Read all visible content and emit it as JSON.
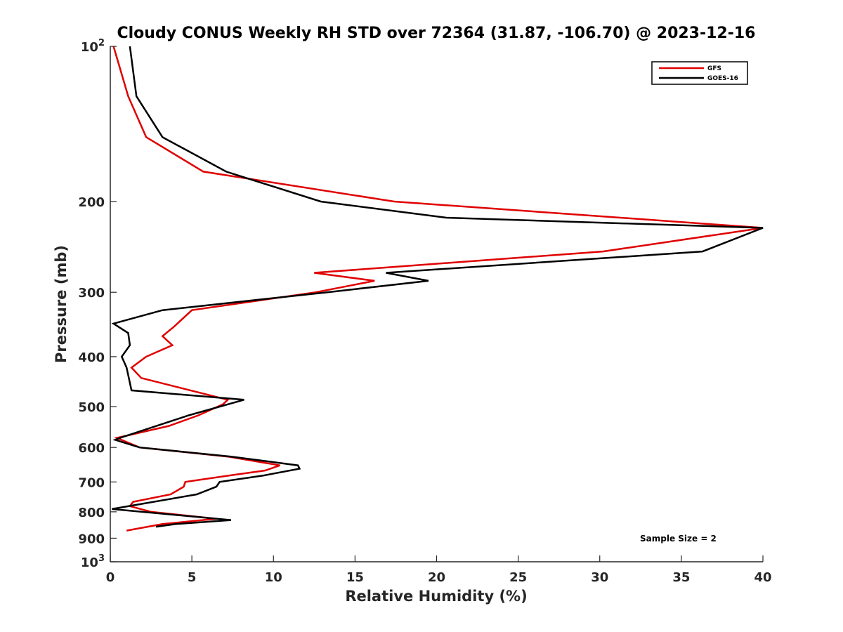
{
  "chart_data": {
    "type": "line",
    "title": "Cloudy CONUS Weekly RH STD over 72364 (31.87, -106.70) @ 2023-12-16",
    "xlabel": "Relative Humidity (%)",
    "ylabel": "Pressure (mb)",
    "xlim": [
      0,
      40
    ],
    "ylim": [
      100,
      1000
    ],
    "yscale": "log",
    "y_reversed": true,
    "grid": false,
    "legend_position": "top-right",
    "x_ticks": [
      {
        "value": 0,
        "label": "0"
      },
      {
        "value": 5,
        "label": "5"
      },
      {
        "value": 10,
        "label": "10"
      },
      {
        "value": 15,
        "label": "15"
      },
      {
        "value": 20,
        "label": "20"
      },
      {
        "value": 25,
        "label": "25"
      },
      {
        "value": 30,
        "label": "30"
      },
      {
        "value": 35,
        "label": "35"
      },
      {
        "value": 40,
        "label": "40"
      }
    ],
    "y_ticks": [
      {
        "value": 100,
        "base": "10",
        "exp": "2"
      },
      {
        "value": 200,
        "base": "200",
        "exp": ""
      },
      {
        "value": 300,
        "base": "300",
        "exp": ""
      },
      {
        "value": 400,
        "base": "400",
        "exp": ""
      },
      {
        "value": 500,
        "base": "500",
        "exp": ""
      },
      {
        "value": 600,
        "base": "600",
        "exp": ""
      },
      {
        "value": 700,
        "base": "700",
        "exp": ""
      },
      {
        "value": 800,
        "base": "800",
        "exp": ""
      },
      {
        "value": 900,
        "base": "900",
        "exp": ""
      },
      {
        "value": 1000,
        "base": "10",
        "exp": "3"
      }
    ],
    "annotation": "Sample Size = 2",
    "series": [
      {
        "name": "GFS",
        "color": "#e00000",
        "points": [
          [
            0.2,
            100
          ],
          [
            1.1,
            125
          ],
          [
            2.2,
            150
          ],
          [
            5.7,
            175
          ],
          [
            17.4,
            200
          ],
          [
            40.0,
            225
          ],
          [
            30.2,
            250
          ],
          [
            12.5,
            275
          ],
          [
            16.2,
            285
          ],
          [
            12.6,
            300
          ],
          [
            5.0,
            325
          ],
          [
            3.9,
            350
          ],
          [
            3.2,
            365
          ],
          [
            3.8,
            380
          ],
          [
            2.2,
            400
          ],
          [
            1.3,
            420
          ],
          [
            1.9,
            440
          ],
          [
            7.2,
            485
          ],
          [
            6.9,
            495
          ],
          [
            5.4,
            520
          ],
          [
            3.6,
            545
          ],
          [
            0.4,
            575
          ],
          [
            1.8,
            600
          ],
          [
            7.2,
            625
          ],
          [
            10.4,
            650
          ],
          [
            9.5,
            665
          ],
          [
            7.3,
            680
          ],
          [
            4.6,
            700
          ],
          [
            4.5,
            715
          ],
          [
            3.7,
            740
          ],
          [
            1.4,
            765
          ],
          [
            1.2,
            780
          ],
          [
            2.5,
            800
          ],
          [
            6.5,
            825
          ],
          [
            3.2,
            845
          ],
          [
            1.0,
            870
          ]
        ]
      },
      {
        "name": "GOES-16",
        "color": "#000000",
        "points": [
          [
            1.2,
            100
          ],
          [
            1.6,
            125
          ],
          [
            3.2,
            150
          ],
          [
            7.1,
            175
          ],
          [
            12.9,
            200
          ],
          [
            20.6,
            215
          ],
          [
            40.0,
            225
          ],
          [
            36.3,
            250
          ],
          [
            16.9,
            275
          ],
          [
            19.5,
            285
          ],
          [
            13.3,
            300
          ],
          [
            3.2,
            325
          ],
          [
            0.2,
            345
          ],
          [
            1.1,
            360
          ],
          [
            1.2,
            380
          ],
          [
            0.7,
            400
          ],
          [
            1.0,
            420
          ],
          [
            1.3,
            465
          ],
          [
            8.2,
            485
          ],
          [
            4.8,
            520
          ],
          [
            0.6,
            575
          ],
          [
            0.3,
            580
          ],
          [
            1.8,
            600
          ],
          [
            7.4,
            625
          ],
          [
            11.5,
            650
          ],
          [
            11.6,
            660
          ],
          [
            9.4,
            680
          ],
          [
            6.7,
            700
          ],
          [
            6.5,
            715
          ],
          [
            5.3,
            740
          ],
          [
            0.1,
            790
          ],
          [
            7.4,
            830
          ],
          [
            4.0,
            845
          ],
          [
            2.8,
            855
          ]
        ]
      }
    ]
  }
}
